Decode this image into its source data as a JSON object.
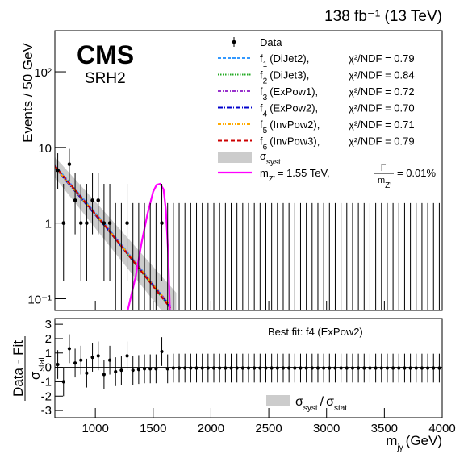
{
  "chart_data": {
    "type": "cms-fit",
    "energy_label": "138 fb⁻¹ (13 TeV)",
    "experiment": "CMS",
    "region": "SRH2",
    "ylabel": "Events / 50 GeV",
    "xlabel": {
      "text": "m",
      "sub": "jγ",
      "unit": "(GeV)"
    },
    "ratio_ylabel": {
      "top": "Data - Fit",
      "bottom": "σ",
      "bottom_sub": "stat"
    },
    "best_fit": "Best fit: f4 (ExPow2)",
    "ratio_legend": {
      "a": "σ",
      "a_sub": "syst",
      "sep": "/",
      "b": "σ",
      "b_sub": "stat"
    },
    "xlim": [
      650,
      4000
    ],
    "xticks": [
      1000,
      1500,
      2000,
      2500,
      3000,
      3500,
      4000
    ],
    "ylim": [
      0.07,
      350
    ],
    "log_y": true,
    "yticks": [
      {
        "value": 0.1,
        "label": "10⁻¹"
      },
      1,
      10,
      {
        "value": 100,
        "label": "10²"
      }
    ],
    "ratio_ylim": [
      -3.5,
      3.4
    ],
    "ratio_yticks": [
      -3,
      -2,
      -1,
      0,
      1,
      2,
      3
    ],
    "data": {
      "name": "Data",
      "x": [
        675,
        725,
        775,
        825,
        875,
        925,
        975,
        1025,
        1075,
        1125,
        1175,
        1225,
        1275,
        1325,
        1375,
        1425,
        1475,
        1525,
        1575,
        1625,
        1675,
        1725,
        1775,
        1825,
        1875,
        1925,
        1975,
        2025,
        2075,
        2125,
        2175,
        2225,
        2275,
        2325,
        2375,
        2425,
        2475,
        2525,
        2575,
        2625,
        2675,
        2725,
        2775,
        2825,
        2875,
        2925,
        2975,
        3025,
        3075,
        3125,
        3175,
        3225,
        3275,
        3325,
        3375,
        3425,
        3475,
        3525,
        3575,
        3625,
        3675,
        3725,
        3775,
        3825,
        3875,
        3925,
        3975
      ],
      "values": [
        5,
        1,
        6,
        2,
        1,
        1,
        2,
        2,
        1,
        1,
        0,
        0,
        1,
        0,
        0,
        0,
        0,
        0,
        1,
        0,
        0,
        0,
        0,
        0,
        0,
        0,
        0,
        0,
        0,
        0,
        0,
        0,
        0,
        0,
        0,
        0,
        0,
        0,
        0,
        0,
        0,
        0,
        0,
        0,
        0,
        0,
        0,
        0,
        0,
        0,
        0,
        0,
        0,
        0,
        0,
        0,
        0,
        0,
        0,
        0,
        0,
        0,
        0,
        0,
        0,
        0,
        0
      ],
      "err_low": [
        2.16,
        0.83,
        2.38,
        1.29,
        0.83,
        0.83,
        1.29,
        1.29,
        0.83,
        0.83,
        0,
        0,
        0.83,
        0,
        0,
        0,
        0,
        0,
        0.83,
        0,
        0,
        0,
        0,
        0,
        0,
        0,
        0,
        0,
        0,
        0,
        0,
        0,
        0,
        0,
        0,
        0,
        0,
        0,
        0,
        0,
        0,
        0,
        0,
        0,
        0,
        0,
        0,
        0,
        0,
        0,
        0,
        0,
        0,
        0,
        0,
        0,
        0,
        0,
        0,
        0,
        0,
        0,
        0,
        0,
        0,
        0,
        0
      ],
      "err_high": [
        3.38,
        2.3,
        3.58,
        2.64,
        2.3,
        2.3,
        2.64,
        2.64,
        2.3,
        2.3,
        1.84,
        1.84,
        2.3,
        1.84,
        1.84,
        1.84,
        1.84,
        1.84,
        2.3,
        1.84,
        1.84,
        1.84,
        1.84,
        1.84,
        1.84,
        1.84,
        1.84,
        1.84,
        1.84,
        1.84,
        1.84,
        1.84,
        1.84,
        1.84,
        1.84,
        1.84,
        1.84,
        1.84,
        1.84,
        1.84,
        1.84,
        1.84,
        1.84,
        1.84,
        1.84,
        1.84,
        1.84,
        1.84,
        1.84,
        1.84,
        1.84,
        1.84,
        1.84,
        1.84,
        1.84,
        1.84,
        1.84,
        1.84,
        1.84,
        1.84,
        1.84,
        1.84,
        1.84,
        1.84,
        1.84,
        1.84,
        1.84
      ],
      "residuals": [
        0.2,
        -1.0,
        1.3,
        0.3,
        0.5,
        -0.4,
        0.7,
        0.8,
        -0.5,
        0.5,
        -0.3,
        -0.2,
        0.8,
        -0.2,
        -0.15,
        -0.1,
        -0.1,
        -0.1,
        1.1,
        -0.1,
        -0.05,
        -0.05,
        -0.05,
        -0.05,
        -0.05,
        -0.05,
        -0.05,
        -0.05,
        -0.05,
        -0.05,
        -0.05,
        -0.05,
        -0.05,
        -0.05,
        -0.05,
        -0.05,
        -0.05,
        -0.05,
        -0.05,
        -0.05,
        -0.05,
        -0.05,
        -0.05,
        -0.05,
        -0.05,
        -0.05,
        -0.05,
        -0.05,
        -0.05,
        -0.05,
        -0.05,
        -0.05,
        -0.05,
        -0.05,
        -0.05,
        -0.05,
        -0.05,
        -0.05,
        -0.05,
        -0.05,
        -0.05,
        -0.05,
        -0.05,
        -0.05,
        -0.05,
        -0.05,
        -0.05
      ],
      "residual_errors": [
        1,
        1,
        1,
        1,
        1,
        1,
        1,
        1,
        1,
        1,
        1,
        1,
        1,
        1,
        1,
        1,
        1,
        1,
        1,
        1,
        1,
        1,
        1,
        1,
        1,
        1,
        1,
        1,
        1,
        1,
        1,
        1,
        1,
        1,
        1,
        1,
        1,
        1,
        1,
        1,
        1,
        1,
        1,
        1,
        1,
        1,
        1,
        1,
        1,
        1,
        1,
        1,
        1,
        1,
        1,
        1,
        1,
        1,
        1,
        1,
        1,
        1,
        1,
        1,
        1,
        1,
        1
      ]
    },
    "fits": [
      {
        "symbol": "f",
        "sub": "1",
        "name": "(DiJet2),",
        "chi2": "χ²/NDF = 0.79",
        "color": "#3399ff",
        "dash": "4,2",
        "x": [
          650,
          1100,
          1650
        ],
        "values": [
          5.8,
          0.9,
          0.08
        ]
      },
      {
        "symbol": "f",
        "sub": "2",
        "name": "(DiJet3),",
        "chi2": "χ²/NDF = 0.84",
        "color": "#22aa22",
        "dash": "1.5,1.5",
        "x": [
          650,
          1100,
          1650
        ],
        "values": [
          5.5,
          0.85,
          0.075
        ]
      },
      {
        "symbol": "f",
        "sub": "3",
        "name": "(ExPow1),",
        "chi2": "χ²/NDF = 0.72",
        "color": "#9933cc",
        "dash": "4,2,1,2",
        "x": [
          650,
          1100,
          1650
        ],
        "values": [
          5.6,
          0.88,
          0.08
        ]
      },
      {
        "symbol": "f",
        "sub": "4",
        "name": "(ExPow2),",
        "chi2": "χ²/NDF = 0.70",
        "color": "#0000cc",
        "dash": "6,2,1,2",
        "x": [
          650,
          1100,
          1650
        ],
        "values": [
          5.4,
          0.85,
          0.078
        ]
      },
      {
        "symbol": "f",
        "sub": "5",
        "name": "(InvPow2),",
        "chi2": "χ²/NDF = 0.71",
        "color": "#ffaa00",
        "dash": "4,2,1,2,1,2",
        "x": [
          650,
          1100,
          1650
        ],
        "values": [
          5.5,
          0.87,
          0.08
        ]
      },
      {
        "symbol": "f",
        "sub": "6",
        "name": "(InvPow3),",
        "chi2": "χ²/NDF = 0.79",
        "color": "#cc0000",
        "dash": "5,3",
        "x": [
          650,
          1100,
          1650
        ],
        "values": [
          5.7,
          0.86,
          0.075
        ]
      }
    ],
    "syst": {
      "symbol": "σ",
      "sub": "syst",
      "color": "#cccccc",
      "x": [
        650,
        1100,
        1700
      ],
      "upper": [
        7.5,
        1.3,
        0.12
      ],
      "lower": [
        4,
        0.55,
        0.04
      ]
    },
    "signal": {
      "color": "#ff00ff",
      "lhs": "m",
      "lhs_sub": "Z'",
      "mass": "= 1.55 TeV,",
      "num": "Γ",
      "den": "m",
      "den_sub": "Z'",
      "width": "= 0.01%",
      "x": [
        1280,
        1350,
        1400,
        1450,
        1500,
        1530,
        1560,
        1590,
        1610,
        1630,
        1645
      ],
      "values": [
        0.07,
        0.2,
        0.55,
        1.3,
        2.6,
        3.2,
        3.3,
        2.8,
        1.5,
        0.4,
        0.07
      ]
    }
  }
}
